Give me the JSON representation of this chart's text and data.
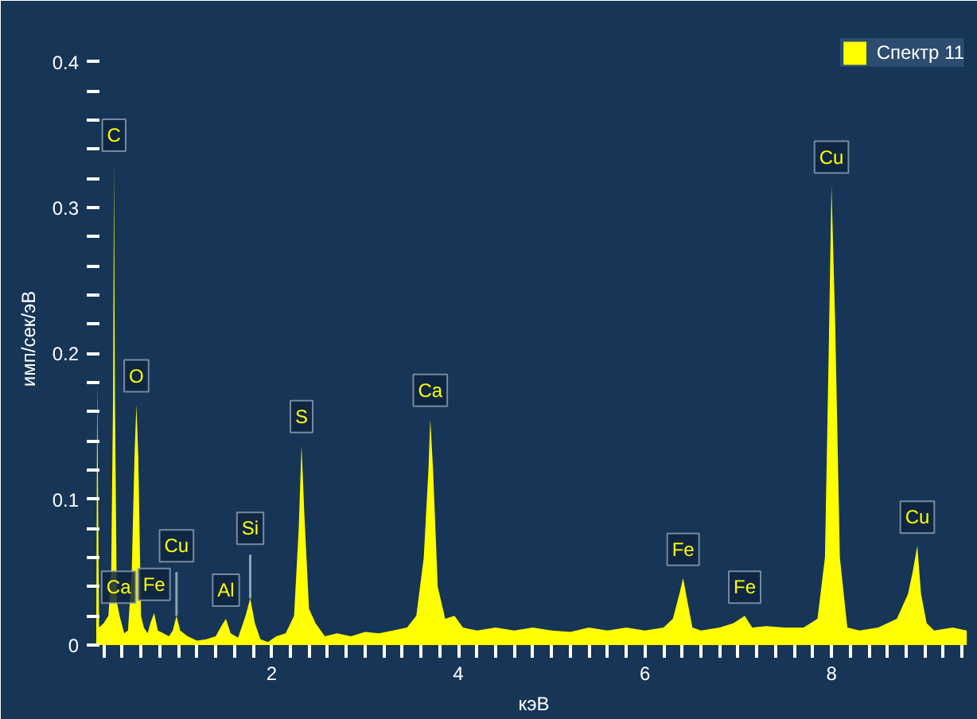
{
  "chart_data": {
    "type": "area",
    "xlabel": "кэВ",
    "ylabel": "имп/сек/эВ",
    "legend": "top right",
    "xlim": [
      0.12,
      9.5
    ],
    "ylim": [
      0,
      0.42
    ],
    "xticks": [
      {
        "value": 0.2,
        "label": null
      },
      {
        "value": 0.4,
        "label": null
      },
      {
        "value": 0.6,
        "label": null
      },
      {
        "value": 0.8,
        "label": null
      },
      {
        "value": 1,
        "label": null
      },
      {
        "value": 1.2,
        "label": null
      },
      {
        "value": 1.4,
        "label": null
      },
      {
        "value": 1.6,
        "label": null
      },
      {
        "value": 1.8,
        "label": null
      },
      2,
      {
        "value": 2.2,
        "label": null
      },
      {
        "value": 2.4,
        "label": null
      },
      {
        "value": 2.6,
        "label": null
      },
      {
        "value": 2.8,
        "label": null
      },
      {
        "value": 3,
        "label": null
      },
      {
        "value": 3.2,
        "label": null
      },
      {
        "value": 3.4,
        "label": null
      },
      {
        "value": 3.6,
        "label": null
      },
      {
        "value": 3.8,
        "label": null
      },
      4,
      {
        "value": 4.2,
        "label": null
      },
      {
        "value": 4.4,
        "label": null
      },
      {
        "value": 4.6,
        "label": null
      },
      {
        "value": 4.8,
        "label": null
      },
      {
        "value": 5,
        "label": null
      },
      {
        "value": 5.2,
        "label": null
      },
      {
        "value": 5.4,
        "label": null
      },
      {
        "value": 5.6,
        "label": null
      },
      {
        "value": 5.8,
        "label": null
      },
      6,
      {
        "value": 6.2,
        "label": null
      },
      {
        "value": 6.4,
        "label": null
      },
      {
        "value": 6.6,
        "label": null
      },
      {
        "value": 6.8,
        "label": null
      },
      {
        "value": 7,
        "label": null
      },
      {
        "value": 7.2,
        "label": null
      },
      {
        "value": 7.4,
        "label": null
      },
      {
        "value": 7.6,
        "label": null
      },
      {
        "value": 7.8,
        "label": null
      },
      8,
      {
        "value": 8.2,
        "label": null
      },
      {
        "value": 8.4,
        "label": null
      },
      {
        "value": 8.6,
        "label": null
      },
      {
        "value": 8.8,
        "label": null
      },
      {
        "value": 9,
        "label": null
      },
      {
        "value": 9.2,
        "label": null
      },
      {
        "value": 9.4,
        "label": null
      }
    ],
    "yticks": [
      0,
      {
        "value": 0.02,
        "label": null
      },
      {
        "value": 0.04,
        "label": null
      },
      {
        "value": 0.06,
        "label": null
      },
      {
        "value": 0.08,
        "label": null
      },
      0.1,
      {
        "value": 0.12,
        "label": null
      },
      {
        "value": 0.14,
        "label": null
      },
      {
        "value": 0.16,
        "label": null
      },
      {
        "value": 0.18,
        "label": null
      },
      0.2,
      {
        "value": 0.22,
        "label": null
      },
      {
        "value": 0.24,
        "label": null
      },
      {
        "value": 0.26,
        "label": null
      },
      {
        "value": 0.28,
        "label": null
      },
      0.3,
      {
        "value": 0.32,
        "label": null
      },
      {
        "value": 0.34,
        "label": null
      },
      {
        "value": 0.36,
        "label": null
      },
      {
        "value": 0.38,
        "label": null
      },
      0.4
    ],
    "series": [
      {
        "name": "Спектр 11",
        "color": "#ffff00",
        "x": [
          0.12,
          0.13,
          0.15,
          0.2,
          0.25,
          0.28,
          0.3,
          0.31,
          0.32,
          0.34,
          0.37,
          0.42,
          0.46,
          0.5,
          0.53,
          0.55,
          0.57,
          0.6,
          0.63,
          0.67,
          0.7,
          0.74,
          0.78,
          0.84,
          0.9,
          0.94,
          0.98,
          1.02,
          1.1,
          1.2,
          1.3,
          1.4,
          1.47,
          1.51,
          1.56,
          1.64,
          1.72,
          1.77,
          1.82,
          1.88,
          1.96,
          2.05,
          2.15,
          2.24,
          2.29,
          2.32,
          2.35,
          2.4,
          2.47,
          2.57,
          2.7,
          2.85,
          3.0,
          3.15,
          3.3,
          3.45,
          3.55,
          3.63,
          3.68,
          3.7,
          3.73,
          3.78,
          3.86,
          3.96,
          4.05,
          4.2,
          4.4,
          4.6,
          4.8,
          5.0,
          5.2,
          5.4,
          5.6,
          5.8,
          6.0,
          6.2,
          6.3,
          6.37,
          6.41,
          6.45,
          6.51,
          6.6,
          6.8,
          6.95,
          7.07,
          7.15,
          7.3,
          7.5,
          7.7,
          7.85,
          7.93,
          7.97,
          8.0,
          8.04,
          8.09,
          8.17,
          8.3,
          8.5,
          8.7,
          8.82,
          8.87,
          8.92,
          8.96,
          9.02,
          9.1,
          9.3,
          9.45
        ],
        "values": [
          0.01,
          0.18,
          0.012,
          0.015,
          0.02,
          0.05,
          0.17,
          0.33,
          0.17,
          0.03,
          0.02,
          0.008,
          0.01,
          0.05,
          0.13,
          0.165,
          0.13,
          0.02,
          0.012,
          0.008,
          0.015,
          0.022,
          0.01,
          0.008,
          0.006,
          0.01,
          0.02,
          0.01,
          0.006,
          0.003,
          0.004,
          0.006,
          0.014,
          0.018,
          0.008,
          0.005,
          0.02,
          0.032,
          0.015,
          0.004,
          0.002,
          0.006,
          0.008,
          0.02,
          0.08,
          0.137,
          0.09,
          0.025,
          0.015,
          0.006,
          0.008,
          0.006,
          0.009,
          0.008,
          0.01,
          0.012,
          0.02,
          0.06,
          0.12,
          0.155,
          0.12,
          0.04,
          0.018,
          0.02,
          0.012,
          0.01,
          0.012,
          0.01,
          0.012,
          0.01,
          0.009,
          0.012,
          0.01,
          0.012,
          0.01,
          0.012,
          0.018,
          0.035,
          0.046,
          0.032,
          0.012,
          0.01,
          0.012,
          0.015,
          0.02,
          0.012,
          0.013,
          0.012,
          0.012,
          0.018,
          0.06,
          0.2,
          0.315,
          0.22,
          0.06,
          0.012,
          0.01,
          0.012,
          0.018,
          0.035,
          0.05,
          0.068,
          0.035,
          0.015,
          0.01,
          0.012,
          0.01
        ]
      }
    ],
    "annotations": [
      {
        "text": "C",
        "x": 0.31,
        "y": 0.33
      },
      {
        "text": "Ca",
        "x": 0.36,
        "y": 0.02
      },
      {
        "text": "O",
        "x": 0.55,
        "y": 0.165
      },
      {
        "text": "Fe",
        "x": 0.74,
        "y": 0.022
      },
      {
        "text": "Cu",
        "x": 0.98,
        "y": 0.02
      },
      {
        "text": "Al",
        "x": 1.51,
        "y": 0.018
      },
      {
        "text": "Si",
        "x": 1.77,
        "y": 0.032
      },
      {
        "text": "S",
        "x": 2.32,
        "y": 0.137
      },
      {
        "text": "Ca",
        "x": 3.7,
        "y": 0.155
      },
      {
        "text": "Fe",
        "x": 6.41,
        "y": 0.046
      },
      {
        "text": "Fe",
        "x": 7.07,
        "y": 0.02
      },
      {
        "text": "Cu",
        "x": 8.0,
        "y": 0.315
      },
      {
        "text": "Cu",
        "x": 8.92,
        "y": 0.068
      }
    ]
  }
}
